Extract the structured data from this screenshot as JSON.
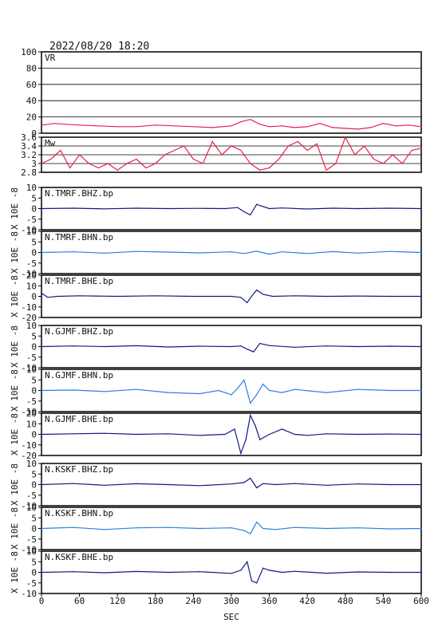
{
  "header": {
    "datetime": "2022/08/20 18:20"
  },
  "xaxis": {
    "label": "SEC",
    "ticks": [
      0,
      60,
      120,
      180,
      240,
      300,
      360,
      420,
      480,
      540,
      600
    ],
    "range": [
      0,
      600
    ]
  },
  "colors": {
    "frame": "#000000",
    "vr": "#e8204a",
    "mw": "#e8204a",
    "navy": "#101a80",
    "light": "#2a7fe0",
    "grid": "#000000"
  },
  "chart_data": [
    {
      "type": "line",
      "panel": "vr",
      "label": "VR",
      "ylim": [
        0,
        100
      ],
      "yticks": [
        0,
        20,
        40,
        60,
        80,
        100
      ],
      "grid": true,
      "color": "vr",
      "x": [
        0,
        20,
        40,
        60,
        90,
        120,
        150,
        180,
        210,
        240,
        270,
        300,
        315,
        330,
        345,
        360,
        380,
        400,
        420,
        440,
        460,
        480,
        500,
        520,
        540,
        560,
        580,
        600
      ],
      "values": [
        10,
        12,
        11,
        10,
        9,
        8,
        8,
        10,
        9,
        8,
        7,
        9,
        14,
        17,
        11,
        8,
        9,
        7,
        8,
        12,
        7,
        6,
        5,
        7,
        12,
        9,
        10,
        8
      ]
    },
    {
      "type": "line",
      "panel": "mw",
      "label": "Mw",
      "ylim": [
        2.8,
        3.6
      ],
      "yticks": [
        2.8,
        3.0,
        3.2,
        3.4,
        3.6
      ],
      "grid": true,
      "color": "mw",
      "x": [
        0,
        15,
        30,
        45,
        60,
        75,
        90,
        105,
        120,
        135,
        150,
        165,
        180,
        195,
        210,
        225,
        240,
        255,
        270,
        285,
        300,
        315,
        330,
        345,
        360,
        375,
        390,
        405,
        420,
        435,
        450,
        465,
        480,
        495,
        510,
        525,
        540,
        555,
        570,
        585,
        600
      ],
      "values": [
        3.0,
        3.1,
        3.3,
        2.9,
        3.2,
        3.0,
        2.9,
        3.0,
        2.85,
        3.0,
        3.1,
        2.9,
        3.0,
        3.2,
        3.3,
        3.4,
        3.1,
        3.0,
        3.5,
        3.2,
        3.4,
        3.3,
        3.0,
        2.85,
        2.9,
        3.1,
        3.4,
        3.5,
        3.3,
        3.45,
        2.85,
        3.0,
        3.6,
        3.2,
        3.4,
        3.1,
        3.0,
        3.2,
        3.0,
        3.3,
        3.35
      ]
    },
    {
      "type": "line",
      "panel": "s1",
      "label": "N.TMRF.BHZ.bp",
      "ylabel": "X 10E -8",
      "ylim": [
        -10,
        10
      ],
      "yticks": [
        -10,
        -5,
        0,
        5,
        10
      ],
      "color": "navy",
      "x": [
        0,
        50,
        100,
        150,
        200,
        250,
        290,
        310,
        320,
        330,
        340,
        350,
        360,
        380,
        420,
        460,
        500,
        550,
        600
      ],
      "values": [
        0,
        0.2,
        -0.1,
        0.2,
        0,
        0.1,
        0,
        0.5,
        -1.5,
        -3,
        2,
        1,
        0,
        0.3,
        -0.2,
        0.2,
        0,
        0.2,
        0
      ]
    },
    {
      "type": "line",
      "panel": "s2",
      "label": "N.TMRF.BHN.bp",
      "ylabel": "X 10E -8",
      "ylim": [
        -10,
        10
      ],
      "yticks": [
        -10,
        -5,
        0,
        5,
        10
      ],
      "color": "light",
      "x": [
        0,
        50,
        100,
        150,
        200,
        250,
        300,
        320,
        340,
        360,
        380,
        420,
        460,
        500,
        550,
        600
      ],
      "values": [
        0,
        0.3,
        -0.3,
        0.5,
        0.2,
        -0.2,
        0.3,
        -0.5,
        0.6,
        -0.8,
        0.3,
        -0.5,
        0.4,
        -0.3,
        0.5,
        0
      ]
    },
    {
      "type": "line",
      "panel": "s3",
      "label": "N.TMRF.BHE.bp",
      "ylabel": "X 10E -8",
      "ylim": [
        -20,
        20
      ],
      "yticks": [
        -20,
        -10,
        0,
        10,
        20
      ],
      "color": "navy",
      "x": [
        0,
        10,
        25,
        60,
        120,
        180,
        240,
        300,
        315,
        325,
        333,
        340,
        350,
        365,
        400,
        450,
        500,
        550,
        600
      ],
      "values": [
        3,
        -1,
        0,
        0.5,
        0,
        0.5,
        0,
        0,
        -1,
        -6,
        1,
        6,
        2,
        0,
        0.5,
        0,
        0.3,
        0,
        0
      ]
    },
    {
      "type": "line",
      "panel": "s4",
      "label": "N.GJMF.BHZ.bp",
      "ylabel": "X 10E -8",
      "ylim": [
        -10,
        10
      ],
      "yticks": [
        -10,
        -5,
        0,
        5,
        10
      ],
      "color": "navy",
      "x": [
        0,
        50,
        100,
        150,
        200,
        250,
        300,
        315,
        325,
        335,
        345,
        360,
        400,
        450,
        500,
        550,
        600
      ],
      "values": [
        0,
        0.3,
        0,
        0.4,
        -0.2,
        0.2,
        0,
        0.3,
        -1.2,
        -2.5,
        1.5,
        0.5,
        -0.3,
        0.3,
        0,
        0.2,
        0
      ]
    },
    {
      "type": "line",
      "panel": "s5",
      "label": "N.GJMF.BHN.bp",
      "ylabel": "X 10E -8",
      "ylim": [
        -10,
        10
      ],
      "yticks": [
        -10,
        -5,
        0,
        5,
        10
      ],
      "color": "light",
      "x": [
        0,
        50,
        100,
        150,
        200,
        250,
        280,
        300,
        310,
        320,
        330,
        340,
        350,
        360,
        380,
        400,
        450,
        500,
        550,
        600
      ],
      "values": [
        0,
        0.2,
        -0.5,
        0.5,
        -1,
        -1.5,
        0,
        -2,
        1,
        5,
        -6,
        -2,
        3,
        0,
        -1,
        0.5,
        -1,
        0.5,
        0,
        0
      ]
    },
    {
      "type": "line",
      "panel": "s6",
      "label": "N.GJMF.BHE.bp",
      "ylabel": "X 10E -8",
      "ylim": [
        -20,
        20
      ],
      "yticks": [
        -20,
        -10,
        0,
        10,
        20
      ],
      "color": "navy",
      "x": [
        0,
        50,
        100,
        150,
        200,
        250,
        290,
        305,
        315,
        323,
        330,
        338,
        345,
        360,
        380,
        400,
        420,
        450,
        500,
        550,
        600
      ],
      "values": [
        0,
        0.5,
        1,
        0,
        0.5,
        -1,
        0,
        5,
        -18,
        -5,
        18,
        8,
        -5,
        0,
        5,
        0,
        -1,
        0.5,
        0,
        0.3,
        0
      ]
    },
    {
      "type": "line",
      "panel": "s7",
      "label": "N.KSKF.BHZ.bp",
      "ylabel": "X 10E -8",
      "ylim": [
        -10,
        10
      ],
      "yticks": [
        -10,
        -5,
        0,
        5,
        10
      ],
      "color": "navy",
      "x": [
        0,
        50,
        100,
        150,
        200,
        250,
        300,
        320,
        330,
        340,
        350,
        370,
        400,
        450,
        500,
        550,
        600
      ],
      "values": [
        0,
        0.5,
        -0.3,
        0.4,
        0,
        -0.5,
        0.3,
        1,
        3,
        -1.5,
        0.5,
        0,
        0.5,
        -0.3,
        0.3,
        0,
        0
      ]
    },
    {
      "type": "line",
      "panel": "s8",
      "label": "N.KSKF.BHN.bp",
      "ylabel": "X 10E -8",
      "ylim": [
        -10,
        10
      ],
      "yticks": [
        -10,
        -5,
        0,
        5,
        10
      ],
      "color": "light",
      "x": [
        0,
        50,
        100,
        150,
        200,
        250,
        300,
        320,
        330,
        340,
        350,
        370,
        400,
        450,
        500,
        550,
        600
      ],
      "values": [
        0,
        0.5,
        -0.5,
        0.3,
        0.5,
        0,
        0.3,
        -1,
        -2.5,
        3,
        0,
        -0.5,
        0.5,
        0,
        0.3,
        -0.2,
        0
      ]
    },
    {
      "type": "line",
      "panel": "s9",
      "label": "N.KSKF.BHE.bp",
      "ylabel": "X 10E -8",
      "ylim": [
        -10,
        10
      ],
      "yticks": [
        -10,
        -5,
        0,
        5,
        10
      ],
      "color": "navy",
      "x": [
        0,
        50,
        100,
        150,
        200,
        250,
        300,
        315,
        325,
        332,
        340,
        350,
        360,
        380,
        400,
        450,
        500,
        550,
        600
      ],
      "values": [
        0,
        0.3,
        -0.2,
        0.4,
        0,
        0.3,
        -0.5,
        1,
        5,
        -4,
        -5,
        2,
        1,
        0,
        0.5,
        -0.4,
        0.2,
        0,
        0
      ]
    }
  ]
}
